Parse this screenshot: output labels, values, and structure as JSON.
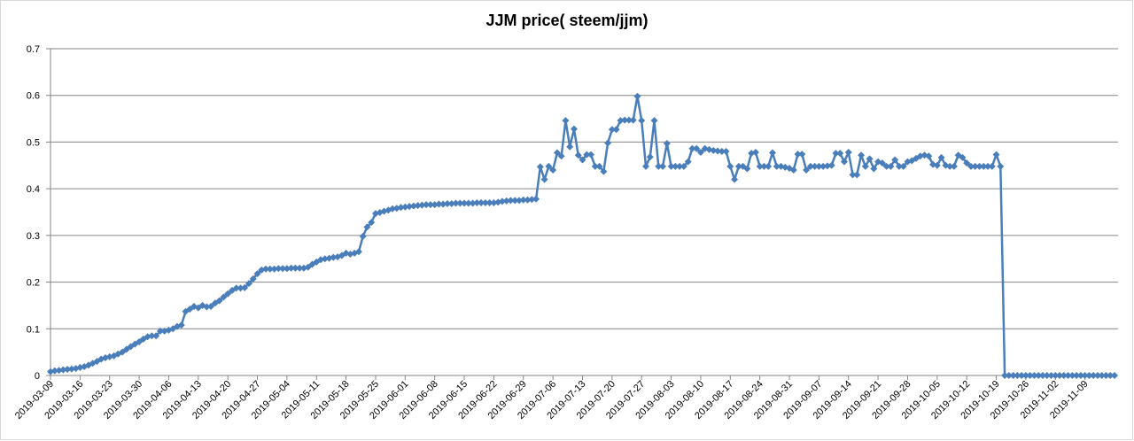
{
  "chart_data": {
    "type": "line",
    "title": "JJM price( steem/jjm)",
    "x": [
      "2019-03-09",
      "2019-03-10",
      "2019-03-11",
      "2019-03-12",
      "2019-03-13",
      "2019-03-14",
      "2019-03-15",
      "2019-03-16",
      "2019-03-17",
      "2019-03-18",
      "2019-03-19",
      "2019-03-20",
      "2019-03-21",
      "2019-03-22",
      "2019-03-23",
      "2019-03-24",
      "2019-03-25",
      "2019-03-26",
      "2019-03-27",
      "2019-03-28",
      "2019-03-29",
      "2019-03-30",
      "2019-03-31",
      "2019-04-01",
      "2019-04-02",
      "2019-04-03",
      "2019-04-04",
      "2019-04-05",
      "2019-04-06",
      "2019-04-07",
      "2019-04-08",
      "2019-04-09",
      "2019-04-10",
      "2019-04-11",
      "2019-04-12",
      "2019-04-13",
      "2019-04-14",
      "2019-04-15",
      "2019-04-16",
      "2019-04-17",
      "2019-04-18",
      "2019-04-19",
      "2019-04-20",
      "2019-04-21",
      "2019-04-22",
      "2019-04-23",
      "2019-04-24",
      "2019-04-25",
      "2019-04-26",
      "2019-04-27",
      "2019-04-28",
      "2019-04-29",
      "2019-04-30",
      "2019-05-01",
      "2019-05-02",
      "2019-05-03",
      "2019-05-04",
      "2019-05-05",
      "2019-05-06",
      "2019-05-07",
      "2019-05-08",
      "2019-05-09",
      "2019-05-10",
      "2019-05-11",
      "2019-05-12",
      "2019-05-13",
      "2019-05-14",
      "2019-05-15",
      "2019-05-16",
      "2019-05-17",
      "2019-05-18",
      "2019-05-19",
      "2019-05-20",
      "2019-05-21",
      "2019-05-22",
      "2019-05-23",
      "2019-05-24",
      "2019-05-25",
      "2019-05-26",
      "2019-05-27",
      "2019-05-28",
      "2019-05-29",
      "2019-05-30",
      "2019-05-31",
      "2019-06-01",
      "2019-06-02",
      "2019-06-03",
      "2019-06-04",
      "2019-06-05",
      "2019-06-06",
      "2019-06-07",
      "2019-06-08",
      "2019-06-09",
      "2019-06-10",
      "2019-06-11",
      "2019-06-12",
      "2019-06-13",
      "2019-06-14",
      "2019-06-15",
      "2019-06-16",
      "2019-06-17",
      "2019-06-18",
      "2019-06-19",
      "2019-06-20",
      "2019-06-21",
      "2019-06-22",
      "2019-06-23",
      "2019-06-24",
      "2019-06-25",
      "2019-06-26",
      "2019-06-27",
      "2019-06-28",
      "2019-06-29",
      "2019-06-30",
      "2019-07-01",
      "2019-07-02",
      "2019-07-03",
      "2019-07-04",
      "2019-07-05",
      "2019-07-06",
      "2019-07-07",
      "2019-07-08",
      "2019-07-09",
      "2019-07-10",
      "2019-07-11",
      "2019-07-12",
      "2019-07-13",
      "2019-07-14",
      "2019-07-15",
      "2019-07-16",
      "2019-07-17",
      "2019-07-18",
      "2019-07-19",
      "2019-07-20",
      "2019-07-21",
      "2019-07-22",
      "2019-07-23",
      "2019-07-24",
      "2019-07-25",
      "2019-07-26",
      "2019-07-27",
      "2019-07-28",
      "2019-07-29",
      "2019-07-30",
      "2019-07-31",
      "2019-08-01",
      "2019-08-02",
      "2019-08-03",
      "2019-08-04",
      "2019-08-05",
      "2019-08-06",
      "2019-08-07",
      "2019-08-08",
      "2019-08-09",
      "2019-08-10",
      "2019-08-11",
      "2019-08-12",
      "2019-08-13",
      "2019-08-14",
      "2019-08-15",
      "2019-08-16",
      "2019-08-17",
      "2019-08-18",
      "2019-08-19",
      "2019-08-20",
      "2019-08-21",
      "2019-08-22",
      "2019-08-23",
      "2019-08-24",
      "2019-08-25",
      "2019-08-26",
      "2019-08-27",
      "2019-08-28",
      "2019-08-29",
      "2019-08-30",
      "2019-08-31",
      "2019-09-01",
      "2019-09-02",
      "2019-09-03",
      "2019-09-04",
      "2019-09-05",
      "2019-09-06",
      "2019-09-07",
      "2019-09-08",
      "2019-09-09",
      "2019-09-10",
      "2019-09-11",
      "2019-09-12",
      "2019-09-13",
      "2019-09-14",
      "2019-09-15",
      "2019-09-16",
      "2019-09-17",
      "2019-09-18",
      "2019-09-19",
      "2019-09-20",
      "2019-09-21",
      "2019-09-22",
      "2019-09-23",
      "2019-09-24",
      "2019-09-25",
      "2019-09-26",
      "2019-09-27",
      "2019-09-28",
      "2019-09-29",
      "2019-09-30",
      "2019-10-01",
      "2019-10-02",
      "2019-10-03",
      "2019-10-04",
      "2019-10-05",
      "2019-10-06",
      "2019-10-07",
      "2019-10-08",
      "2019-10-09",
      "2019-10-10",
      "2019-10-11",
      "2019-10-12",
      "2019-10-13",
      "2019-10-14",
      "2019-10-15",
      "2019-10-16",
      "2019-10-17",
      "2019-10-18",
      "2019-10-19",
      "2019-10-20",
      "2019-10-21",
      "2019-10-22",
      "2019-10-23",
      "2019-10-24",
      "2019-10-25",
      "2019-10-26",
      "2019-10-27",
      "2019-10-28",
      "2019-10-29",
      "2019-10-30",
      "2019-10-31",
      "2019-11-01",
      "2019-11-02",
      "2019-11-03",
      "2019-11-04",
      "2019-11-05",
      "2019-11-06",
      "2019-11-07",
      "2019-11-08",
      "2019-11-09",
      "2019-11-10",
      "2019-11-11",
      "2019-11-12",
      "2019-11-13",
      "2019-11-14",
      "2019-11-15",
      "2019-11-16"
    ],
    "series": [
      {
        "color": "#4a7ebb",
        "values": [
          0.008,
          0.01,
          0.011,
          0.012,
          0.013,
          0.014,
          0.015,
          0.017,
          0.019,
          0.022,
          0.026,
          0.03,
          0.035,
          0.038,
          0.04,
          0.042,
          0.046,
          0.05,
          0.056,
          0.062,
          0.067,
          0.072,
          0.078,
          0.083,
          0.085,
          0.085,
          0.095,
          0.095,
          0.097,
          0.1,
          0.105,
          0.108,
          0.137,
          0.142,
          0.148,
          0.145,
          0.15,
          0.147,
          0.148,
          0.155,
          0.16,
          0.168,
          0.175,
          0.182,
          0.187,
          0.187,
          0.188,
          0.197,
          0.207,
          0.218,
          0.226,
          0.228,
          0.228,
          0.228,
          0.229,
          0.229,
          0.229,
          0.23,
          0.23,
          0.23,
          0.23,
          0.232,
          0.238,
          0.243,
          0.248,
          0.25,
          0.251,
          0.253,
          0.254,
          0.257,
          0.262,
          0.26,
          0.262,
          0.265,
          0.298,
          0.318,
          0.328,
          0.347,
          0.349,
          0.352,
          0.354,
          0.357,
          0.358,
          0.36,
          0.361,
          0.362,
          0.363,
          0.364,
          0.365,
          0.366,
          0.366,
          0.366,
          0.367,
          0.367,
          0.368,
          0.368,
          0.369,
          0.369,
          0.369,
          0.369,
          0.369,
          0.37,
          0.37,
          0.37,
          0.37,
          0.37,
          0.371,
          0.373,
          0.374,
          0.375,
          0.375,
          0.375,
          0.376,
          0.376,
          0.377,
          0.378,
          0.447,
          0.42,
          0.448,
          0.44,
          0.477,
          0.47,
          0.546,
          0.49,
          0.528,
          0.472,
          0.462,
          0.473,
          0.473,
          0.448,
          0.448,
          0.437,
          0.498,
          0.527,
          0.527,
          0.546,
          0.547,
          0.547,
          0.547,
          0.598,
          0.546,
          0.448,
          0.468,
          0.546,
          0.448,
          0.448,
          0.497,
          0.448,
          0.448,
          0.448,
          0.448,
          0.458,
          0.486,
          0.486,
          0.478,
          0.486,
          0.484,
          0.482,
          0.481,
          0.48,
          0.48,
          0.448,
          0.42,
          0.448,
          0.448,
          0.443,
          0.476,
          0.478,
          0.448,
          0.448,
          0.448,
          0.477,
          0.448,
          0.448,
          0.446,
          0.444,
          0.44,
          0.474,
          0.474,
          0.44,
          0.448,
          0.448,
          0.448,
          0.448,
          0.449,
          0.45,
          0.476,
          0.476,
          0.458,
          0.478,
          0.43,
          0.43,
          0.472,
          0.448,
          0.464,
          0.443,
          0.458,
          0.455,
          0.448,
          0.448,
          0.462,
          0.448,
          0.448,
          0.458,
          0.46,
          0.465,
          0.47,
          0.472,
          0.47,
          0.452,
          0.45,
          0.467,
          0.45,
          0.448,
          0.448,
          0.472,
          0.467,
          0.455,
          0.448,
          0.448,
          0.448,
          0.448,
          0.448,
          0.448,
          0.473,
          0.448,
          0,
          0,
          0,
          0,
          0,
          0,
          0,
          0,
          0,
          0,
          0,
          0,
          0,
          0,
          0,
          0,
          0,
          0,
          0,
          0,
          0,
          0,
          0,
          0,
          0,
          0,
          0
        ]
      }
    ],
    "xlim": [
      "2019-03-09",
      "2019-11-16"
    ],
    "xticks": [
      "2019-03-09",
      "2019-03-16",
      "2019-03-23",
      "2019-03-30",
      "2019-04-06",
      "2019-04-13",
      "2019-04-20",
      "2019-04-27",
      "2019-05-04",
      "2019-05-11",
      "2019-05-18",
      "2019-05-25",
      "2019-06-01",
      "2019-06-08",
      "2019-06-15",
      "2019-06-22",
      "2019-06-29",
      "2019-07-06",
      "2019-07-13",
      "2019-07-20",
      "2019-07-27",
      "2019-08-03",
      "2019-08-10",
      "2019-08-17",
      "2019-08-24",
      "2019-08-31",
      "2019-09-07",
      "2019-09-14",
      "2019-09-21",
      "2019-09-28",
      "2019-10-05",
      "2019-10-12",
      "2019-10-19",
      "2019-10-26",
      "2019-11-02",
      "2019-11-09"
    ],
    "ylim": [
      0,
      0.7
    ],
    "yticks": [
      0,
      0.1,
      0.2,
      0.3,
      0.4,
      0.5,
      0.6,
      0.7
    ],
    "grid": true
  }
}
